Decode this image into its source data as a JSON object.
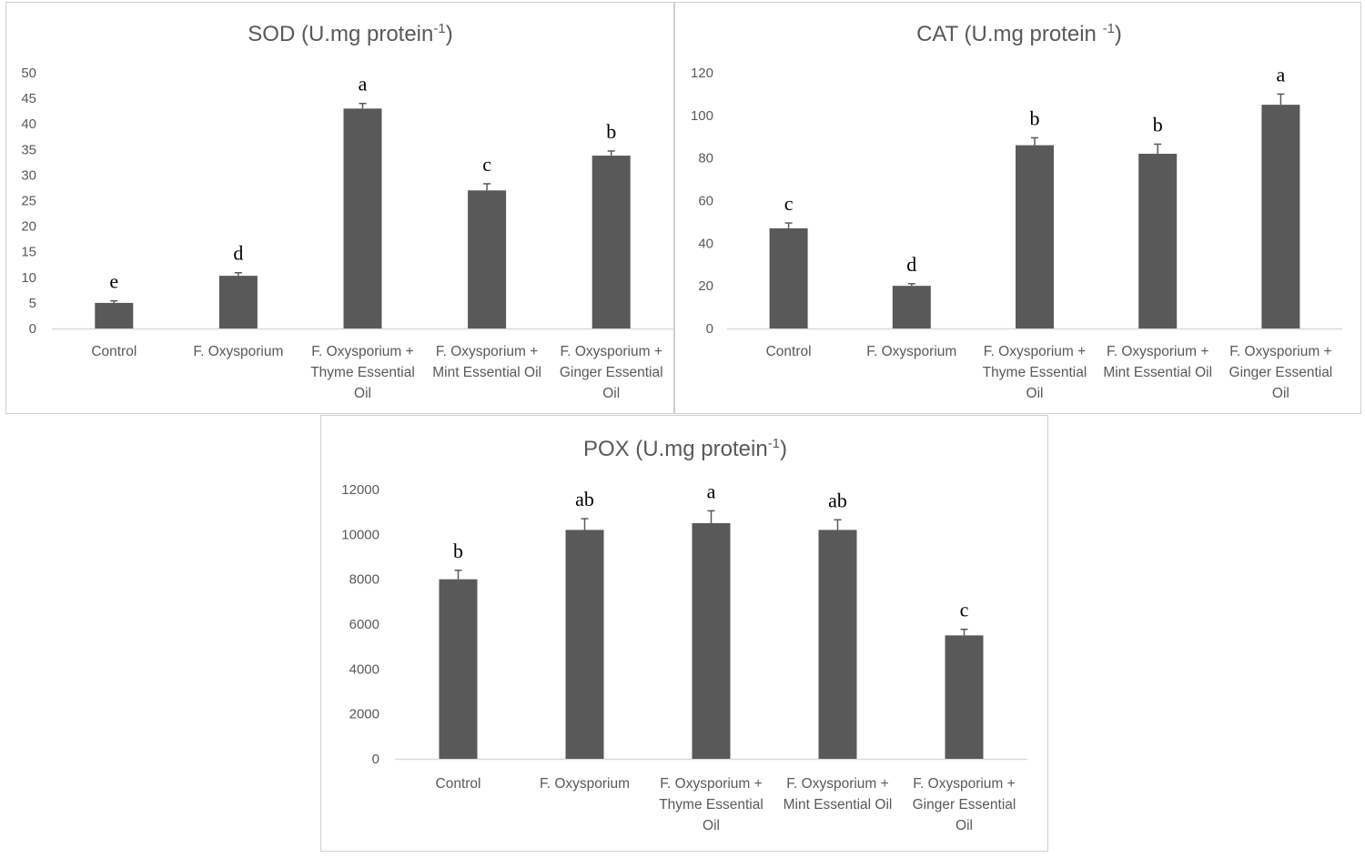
{
  "colors": {
    "bar": "#595959",
    "axis": "#d9d9d9",
    "text": "#595959",
    "letters": "#000000"
  },
  "categories": [
    [
      "Control"
    ],
    [
      "F. Oxysporium"
    ],
    [
      "F. Oxysporium +",
      "Thyme Essential",
      "Oil"
    ],
    [
      "F. Oxysporium +",
      "Mint Essential Oil"
    ],
    [
      "F. Oxysporium +",
      "Ginger Essential",
      "Oil"
    ]
  ],
  "chart_data": [
    {
      "type": "bar",
      "title": "SOD (U.mg protein",
      "title_sup": "-1",
      "title_end": ")",
      "categories": [
        "Control",
        "F. Oxysporium",
        "F. Oxysporium + Thyme Essential Oil",
        "F. Oxysporium + Mint Essential Oil",
        "F. Oxysporium + Ginger Essential Oil"
      ],
      "values": [
        5,
        10.3,
        43,
        27,
        33.8
      ],
      "errors": [
        0.4,
        0.6,
        1.0,
        1.3,
        0.9
      ],
      "letters": [
        "e",
        "d",
        "a",
        "c",
        "b"
      ],
      "ylim": [
        0,
        50
      ],
      "yticks": [
        0,
        5,
        10,
        15,
        20,
        25,
        30,
        35,
        40,
        45,
        50
      ],
      "grid": false,
      "xlabel": "",
      "ylabel": ""
    },
    {
      "type": "bar",
      "title": "CAT (U.mg protein ",
      "title_sup": "-1",
      "title_end": ")",
      "categories": [
        "Control",
        "F. Oxysporium",
        "F. Oxysporium + Thyme Essential Oil",
        "F. Oxysporium + Mint Essential Oil",
        "F. Oxysporium + Ginger Essential Oil"
      ],
      "values": [
        47,
        20,
        86,
        82,
        105
      ],
      "errors": [
        2.5,
        1.0,
        3.5,
        4.5,
        5.0
      ],
      "letters": [
        "c",
        "d",
        "b",
        "b",
        "a"
      ],
      "ylim": [
        0,
        120
      ],
      "yticks": [
        0,
        20,
        40,
        60,
        80,
        100,
        120
      ],
      "grid": false,
      "xlabel": "",
      "ylabel": ""
    },
    {
      "type": "bar",
      "title": "POX (U.mg protein",
      "title_sup": "-1",
      "title_end": ")",
      "categories": [
        "Control",
        "F. Oxysporium",
        "F. Oxysporium + Thyme Essential Oil",
        "F. Oxysporium + Mint Essential Oil",
        "F. Oxysporium + Ginger Essential Oil"
      ],
      "values": [
        8000,
        10200,
        10500,
        10200,
        5500
      ],
      "errors": [
        400,
        500,
        550,
        450,
        270
      ],
      "letters": [
        "b",
        "ab",
        "a",
        "ab",
        "c"
      ],
      "ylim": [
        0,
        12000
      ],
      "yticks": [
        0,
        2000,
        4000,
        6000,
        8000,
        10000,
        12000
      ],
      "grid": false,
      "xlabel": "",
      "ylabel": ""
    }
  ]
}
